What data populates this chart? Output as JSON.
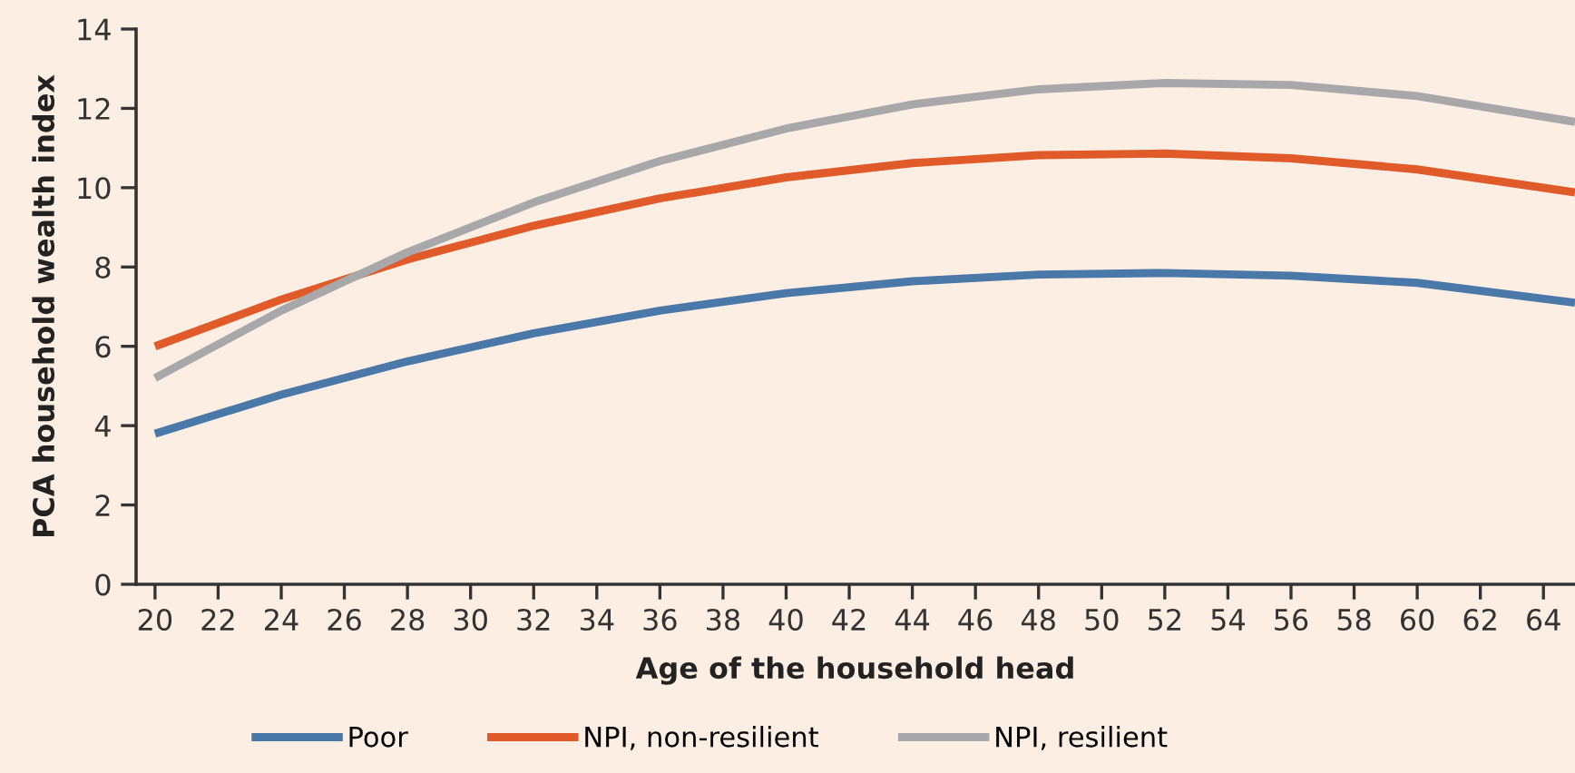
{
  "chart_data": {
    "type": "line",
    "xlabel": "Age of the household head",
    "ylabel": "PCA household wealth index",
    "x": [
      20,
      24,
      28,
      32,
      36,
      40,
      44,
      48,
      52,
      56,
      60,
      65
    ],
    "series": [
      {
        "name": "Poor",
        "color": "#4a78a8",
        "values": [
          3.8,
          4.78,
          5.62,
          6.33,
          6.9,
          7.34,
          7.64,
          7.81,
          7.85,
          7.78,
          7.6,
          7.1
        ]
      },
      {
        "name": "NPI, non-resilient",
        "color": "#e05a2a",
        "values": [
          6.0,
          7.18,
          8.19,
          9.04,
          9.73,
          10.26,
          10.62,
          10.82,
          10.86,
          10.74,
          10.46,
          9.88
        ]
      },
      {
        "name": "NPI, resilient",
        "color": "#a8a8ab",
        "values": [
          5.2,
          6.9,
          8.37,
          9.63,
          10.67,
          11.49,
          12.1,
          12.48,
          12.64,
          12.59,
          12.31,
          11.66
        ]
      }
    ],
    "xlim": [
      19.4,
      65
    ],
    "xticks": [
      20,
      22,
      24,
      26,
      28,
      30,
      32,
      34,
      36,
      38,
      40,
      42,
      44,
      46,
      48,
      50,
      52,
      54,
      56,
      58,
      60,
      62,
      64
    ],
    "ylim": [
      0,
      14
    ],
    "yticks": [
      0,
      2,
      4,
      6,
      8,
      10,
      12,
      14
    ],
    "grid": false,
    "legend": "bottom",
    "marker": "none",
    "line_style": "solid"
  }
}
